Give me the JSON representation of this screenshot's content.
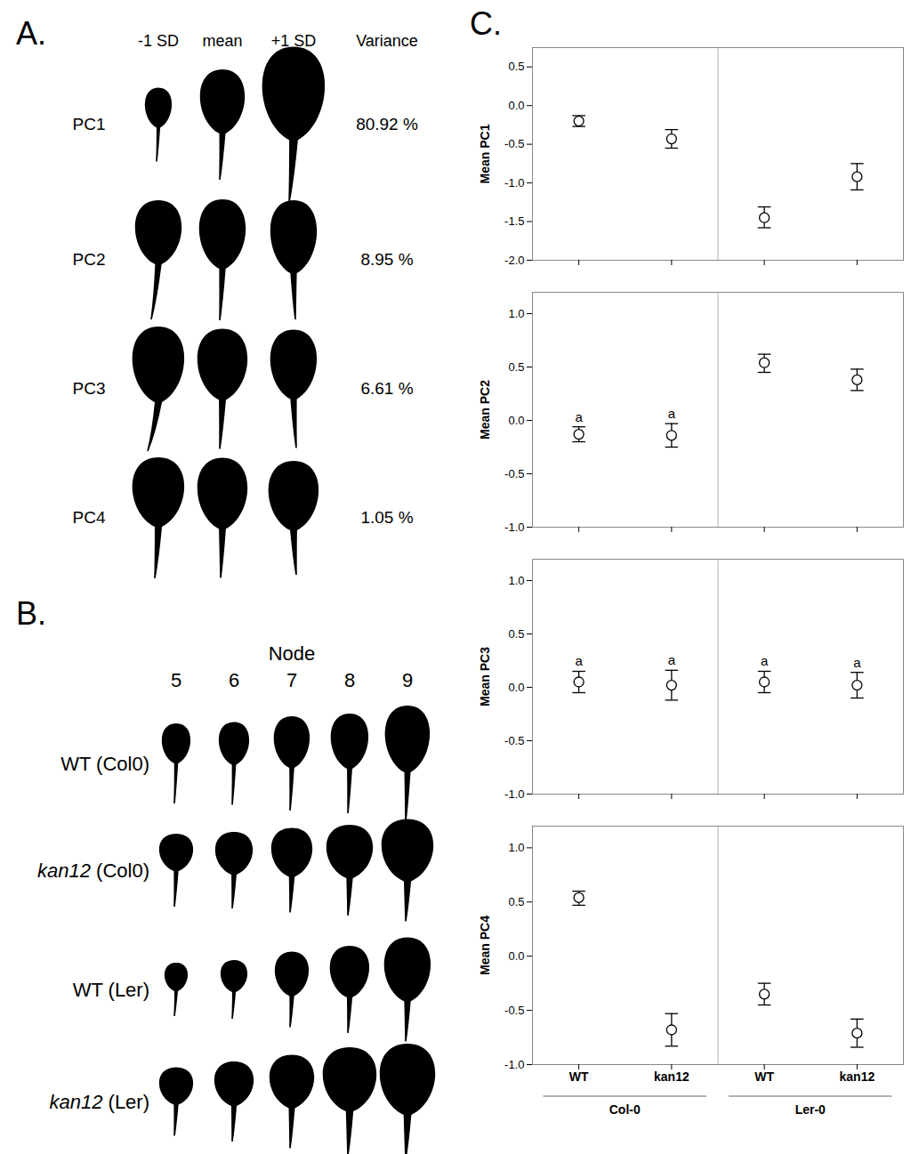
{
  "panel_a": {
    "label": "A.",
    "columns": [
      "-1 SD",
      "mean",
      "+1 SD"
    ],
    "variance_header": "Variance",
    "rows": [
      {
        "pc": "PC1",
        "variance": "80.92 %"
      },
      {
        "pc": "PC2",
        "variance": "8.95 %"
      },
      {
        "pc": "PC3",
        "variance": "6.61 %"
      },
      {
        "pc": "PC4",
        "variance": "1.05 %"
      }
    ]
  },
  "panel_b": {
    "label": "B.",
    "axis_title": "Node",
    "nodes": [
      5,
      6,
      7,
      8,
      9
    ],
    "rows": [
      {
        "genotype": "WT",
        "italic": false,
        "background": "(Col0)"
      },
      {
        "genotype": "kan12",
        "italic": true,
        "background": "(Col0)"
      },
      {
        "genotype": "WT",
        "italic": false,
        "background": "(Ler)"
      },
      {
        "genotype": "kan12",
        "italic": true,
        "background": "(Ler)"
      }
    ]
  },
  "panel_c_label": "C.",
  "chart_data": [
    {
      "type": "scatter",
      "ylabel": "Mean PC1",
      "categories": [
        "WT",
        "kan12",
        "WT",
        "kan12"
      ],
      "groups": [
        "Col-0",
        "Col-0",
        "Ler-0",
        "Ler-0"
      ],
      "values": [
        -0.2,
        -0.43,
        -1.45,
        -0.92
      ],
      "error_low": [
        -0.27,
        -0.55,
        -1.58,
        -1.09
      ],
      "error_high": [
        -0.13,
        -0.31,
        -1.31,
        -0.75
      ],
      "annotations": [
        null,
        null,
        null,
        null
      ],
      "ylim": [
        -2.0,
        0.75
      ],
      "yticks": [
        0.5,
        {
          "value": 0,
          "label": "0.0"
        },
        -0.5,
        {
          "value": -1,
          "label": "-1.0"
        },
        -1.5,
        {
          "value": -2,
          "label": "-2.0"
        }
      ],
      "tick_labels": "y"
    },
    {
      "type": "scatter",
      "ylabel": "Mean PC2",
      "categories": [
        "WT",
        "kan12",
        "WT",
        "kan12"
      ],
      "groups": [
        "Col-0",
        "Col-0",
        "Ler-0",
        "Ler-0"
      ],
      "values": [
        -0.13,
        -0.14,
        0.54,
        0.38
      ],
      "error_low": [
        -0.2,
        -0.25,
        0.45,
        0.28
      ],
      "error_high": [
        -0.06,
        -0.03,
        0.62,
        0.48
      ],
      "annotations": [
        "a",
        "a",
        null,
        null
      ],
      "ylim": [
        -1.0,
        1.2
      ],
      "yticks": [
        {
          "value": 1,
          "label": "1.0"
        },
        0.5,
        {
          "value": 0,
          "label": "0.0"
        },
        -0.5,
        {
          "value": -1,
          "label": "-1.0"
        }
      ],
      "tick_labels": "y"
    },
    {
      "type": "scatter",
      "ylabel": "Mean PC3",
      "categories": [
        "WT",
        "kan12",
        "WT",
        "kan12"
      ],
      "groups": [
        "Col-0",
        "Col-0",
        "Ler-0",
        "Ler-0"
      ],
      "values": [
        0.05,
        0.02,
        0.05,
        0.02
      ],
      "error_low": [
        -0.05,
        -0.12,
        -0.05,
        -0.1
      ],
      "error_high": [
        0.15,
        0.16,
        0.15,
        0.14
      ],
      "annotations": [
        "a",
        "a",
        "a",
        "a"
      ],
      "ylim": [
        -1.0,
        1.2
      ],
      "yticks": [
        {
          "value": 1,
          "label": "1.0"
        },
        0.5,
        {
          "value": 0,
          "label": "0.0"
        },
        -0.5,
        {
          "value": -1,
          "label": "-1.0"
        }
      ],
      "tick_labels": "y"
    },
    {
      "type": "scatter",
      "ylabel": "Mean PC4",
      "categories": [
        "WT",
        "kan12",
        "WT",
        "kan12"
      ],
      "groups": [
        "Col-0",
        "Col-0",
        "Ler-0",
        "Ler-0"
      ],
      "values": [
        0.54,
        -0.68,
        -0.35,
        -0.71
      ],
      "error_low": [
        0.47,
        -0.83,
        -0.45,
        -0.84
      ],
      "error_high": [
        0.6,
        -0.53,
        -0.25,
        -0.58
      ],
      "annotations": [
        null,
        null,
        null,
        null
      ],
      "ylim": [
        -1.0,
        1.2
      ],
      "yticks": [
        {
          "value": 1,
          "label": "1.0"
        },
        0.5,
        {
          "value": 0,
          "label": "0.0"
        },
        -0.5,
        {
          "value": -1,
          "label": "-1.0"
        }
      ],
      "tick_labels": true
    }
  ]
}
